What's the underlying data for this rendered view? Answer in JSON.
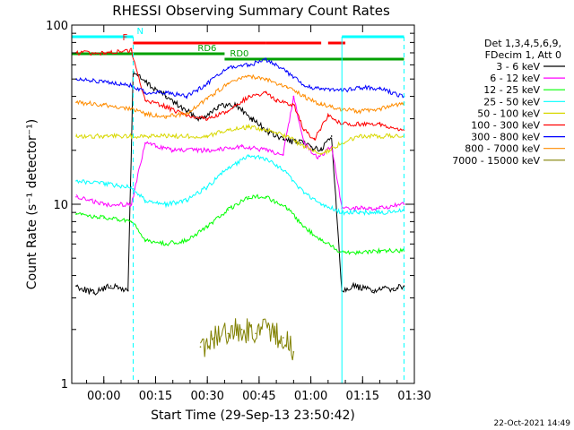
{
  "chart_data": {
    "type": "line",
    "title": "RHESSI Observing Summary Count Rates",
    "xlabel": "Start Time (29-Sep-13 23:50:42)",
    "ylabel": "Count Rate (s⁻¹ detector⁻¹)",
    "yscale": "log",
    "ylim": [
      1,
      100
    ],
    "xlim": [
      "23:50:42",
      "01:30:00"
    ],
    "x_ticks": [
      "00:00",
      "00:15",
      "00:30",
      "00:45",
      "01:00",
      "01:15",
      "01:30"
    ],
    "y_ticks": [
      "1",
      "10",
      "100"
    ],
    "legend_header": [
      "Det 1,3,4,5,6,9,",
      "FDecim 1, Att 0"
    ],
    "legend_position": "right",
    "timestamp": "22-Oct-2021 14:49",
    "flags": [
      {
        "label": "N",
        "color": "#00ffff",
        "segments": [
          [
            "23:50:42",
            "00:08:30"
          ],
          [
            "01:09:00",
            "01:27:00"
          ]
        ]
      },
      {
        "label": "F",
        "color": "#ff0000",
        "segments": [
          [
            "00:08:30",
            "00:47:00"
          ],
          [
            "00:47:00",
            "01:03:00"
          ],
          [
            "01:05:00",
            "01:10:00"
          ]
        ]
      },
      {
        "label": "RD0",
        "color": "#00a000",
        "segments": [
          [
            "00:35:00",
            "01:27:00"
          ]
        ]
      },
      {
        "label": "RD6",
        "color": "#00a000",
        "segments": [
          [
            "23:50:42",
            "00:35:00"
          ]
        ]
      }
    ],
    "terminator_lines": [
      {
        "color": "#00ffff",
        "style": "dashed",
        "x": "00:08:30"
      },
      {
        "color": "#00ffff",
        "style": "solid",
        "x": "01:09:00"
      },
      {
        "color": "#00ffff",
        "style": "dashed",
        "x": "01:27:00"
      }
    ],
    "series": [
      {
        "name": "3 - 6 keV",
        "color": "#000000",
        "x": [
          "23:52",
          "23:57",
          "00:02",
          "00:07",
          "00:08:30",
          "00:12",
          "00:18",
          "00:24",
          "00:28",
          "00:33",
          "00:38",
          "00:43",
          "00:48",
          "00:52",
          "00:57",
          "01:00",
          "01:03",
          "01:06",
          "01:09",
          "01:12",
          "01:18",
          "01:24",
          "01:27"
        ],
        "y": [
          3.5,
          3.2,
          3.5,
          3.3,
          55,
          48,
          40,
          33,
          30,
          35,
          36,
          30,
          25,
          23,
          22,
          21,
          20,
          24,
          3.3,
          3.5,
          3.3,
          3.4,
          3.5
        ]
      },
      {
        "name": "6 - 12 keV",
        "color": "#ff00ff",
        "x": [
          "23:52",
          "00:00",
          "00:08",
          "00:12",
          "00:20",
          "00:30",
          "00:40",
          "00:47",
          "00:52",
          "00:55",
          "00:58",
          "01:02",
          "01:06",
          "01:09",
          "01:14",
          "01:20",
          "01:27"
        ],
        "y": [
          11,
          10,
          10,
          22,
          20,
          20,
          21,
          20,
          19,
          40,
          22,
          18,
          21,
          9.5,
          9.5,
          9.5,
          10
        ]
      },
      {
        "name": "12 - 25 keV",
        "color": "#00ff00",
        "x": [
          "23:52",
          "00:00",
          "00:08",
          "00:12",
          "00:18",
          "00:24",
          "00:30",
          "00:36",
          "00:42",
          "00:47",
          "00:53",
          "00:58",
          "01:03",
          "01:09",
          "01:14",
          "01:20",
          "01:27"
        ],
        "y": [
          8.8,
          8.4,
          8.0,
          6.3,
          6.0,
          6.3,
          7.5,
          9.3,
          11,
          11,
          9.5,
          7.5,
          6.3,
          5.4,
          5.4,
          5.5,
          5.5
        ]
      },
      {
        "name": "25 - 50 keV",
        "color": "#00ffff",
        "x": [
          "23:52",
          "00:00",
          "00:08",
          "00:12",
          "00:18",
          "00:24",
          "00:30",
          "00:36",
          "00:42",
          "00:47",
          "00:53",
          "00:58",
          "01:03",
          "01:09",
          "01:14",
          "01:20",
          "01:27"
        ],
        "y": [
          13.5,
          13,
          12.5,
          10.5,
          10,
          10.5,
          12.5,
          16,
          18.5,
          18,
          15,
          11.5,
          10,
          9.0,
          9.0,
          9.0,
          9.2
        ]
      },
      {
        "name": "50 - 100 keV",
        "color": "#d8d800",
        "x": [
          "23:52",
          "00:00",
          "00:08",
          "00:12",
          "00:20",
          "00:30",
          "00:36",
          "00:42",
          "00:47",
          "00:53",
          "00:58",
          "01:03",
          "01:09",
          "01:14",
          "01:20",
          "01:27"
        ],
        "y": [
          24,
          24,
          24,
          24,
          24,
          24,
          26,
          27,
          26,
          24,
          21,
          19,
          22,
          24,
          24,
          24
        ]
      },
      {
        "name": "100 - 300 keV",
        "color": "#ff0000",
        "x": [
          "23:52",
          "00:00",
          "00:08",
          "00:12",
          "00:18",
          "00:24",
          "00:30",
          "00:36",
          "00:42",
          "00:47",
          "00:50",
          "00:55",
          "00:58",
          "01:01",
          "01:05",
          "01:09",
          "01:14",
          "01:20",
          "01:27"
        ],
        "y": [
          70,
          70,
          72,
          38,
          35,
          31,
          30,
          33,
          40,
          42,
          38,
          36,
          26,
          23,
          31,
          28,
          28,
          28,
          26
        ]
      },
      {
        "name": "300 - 800 keV",
        "color": "#0000ff",
        "x": [
          "23:52",
          "00:00",
          "00:08",
          "00:12",
          "00:18",
          "00:24",
          "00:30",
          "00:36",
          "00:42",
          "00:47",
          "00:53",
          "00:58",
          "01:03",
          "01:09",
          "01:14",
          "01:20",
          "01:27"
        ],
        "y": [
          50,
          48,
          46,
          42,
          42,
          40,
          47,
          58,
          60,
          64,
          55,
          46,
          44,
          43,
          45,
          44,
          40
        ]
      },
      {
        "name": "800 - 7000 keV",
        "color": "#ff8c00",
        "x": [
          "23:52",
          "00:00",
          "00:08",
          "00:12",
          "00:18",
          "00:24",
          "00:30",
          "00:36",
          "00:42",
          "00:47",
          "00:53",
          "00:58",
          "01:03",
          "01:09",
          "01:14",
          "01:20",
          "01:27"
        ],
        "y": [
          37,
          36,
          34,
          32,
          31,
          32,
          39,
          47,
          52,
          50,
          45,
          40,
          36,
          34,
          33,
          34,
          37
        ]
      },
      {
        "name": "7000 - 15000 keV",
        "color": "#808000",
        "x": [
          "00:28",
          "00:32",
          "00:36",
          "00:40",
          "00:44",
          "00:48",
          "00:52",
          "00:55"
        ],
        "y": [
          1.6,
          1.8,
          1.9,
          2.0,
          1.9,
          2.0,
          1.8,
          1.5
        ]
      }
    ]
  }
}
